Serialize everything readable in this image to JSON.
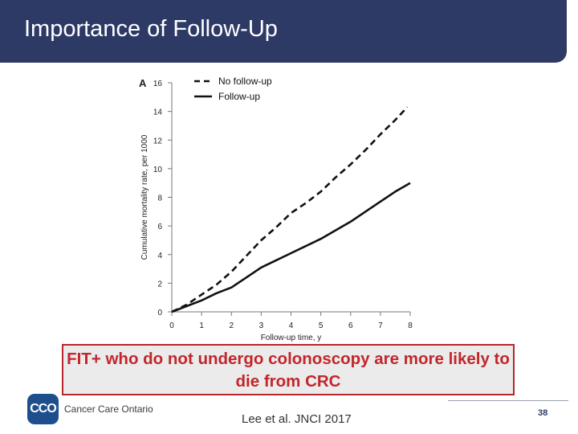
{
  "slide": {
    "title": "Importance of Follow-Up",
    "callout": "FIT+ who do not undergo colonoscopy are more likely to die from CRC",
    "citation": "Lee et al. JNCI 2017",
    "page_number": "38",
    "logo_mark": "CCO",
    "logo_text": "Cancer Care Ontario"
  },
  "colors": {
    "title_bar": "#2e3a66",
    "callout_border": "#b8262b",
    "callout_text": "#c2262b",
    "logo": "#1f4e8c"
  },
  "chart_data": {
    "type": "line",
    "panel_label": "A",
    "xlabel": "Follow-up time, y",
    "ylabel": "Cumulative mortality rate, per 1000",
    "xlim": [
      0,
      8
    ],
    "ylim": [
      0,
      16
    ],
    "x_ticks": [
      "0",
      "1",
      "2",
      "3",
      "4",
      "5",
      "6",
      "7",
      "8"
    ],
    "y_ticks": [
      "0",
      "2",
      "4",
      "6",
      "8",
      "10",
      "12",
      "14",
      "16"
    ],
    "legend_position": "top-left",
    "series": [
      {
        "name": "No follow-up",
        "style": "dashed",
        "x": [
          0,
          0.5,
          1,
          1.5,
          2,
          2.5,
          3,
          3.5,
          4,
          4.5,
          5,
          5.5,
          6,
          6.5,
          7,
          7.5,
          7.9
        ],
        "y": [
          0,
          0.5,
          1.2,
          1.9,
          2.8,
          3.9,
          5.0,
          5.9,
          6.9,
          7.6,
          8.4,
          9.4,
          10.3,
          11.3,
          12.4,
          13.4,
          14.3
        ]
      },
      {
        "name": "Follow-up",
        "style": "solid",
        "x": [
          0,
          0.5,
          1,
          1.5,
          2,
          2.5,
          3,
          3.5,
          4,
          4.5,
          5,
          5.5,
          6,
          6.5,
          7,
          7.5,
          8
        ],
        "y": [
          0,
          0.4,
          0.8,
          1.3,
          1.7,
          2.4,
          3.1,
          3.6,
          4.1,
          4.6,
          5.1,
          5.7,
          6.3,
          7.0,
          7.7,
          8.4,
          9.0
        ]
      }
    ]
  }
}
